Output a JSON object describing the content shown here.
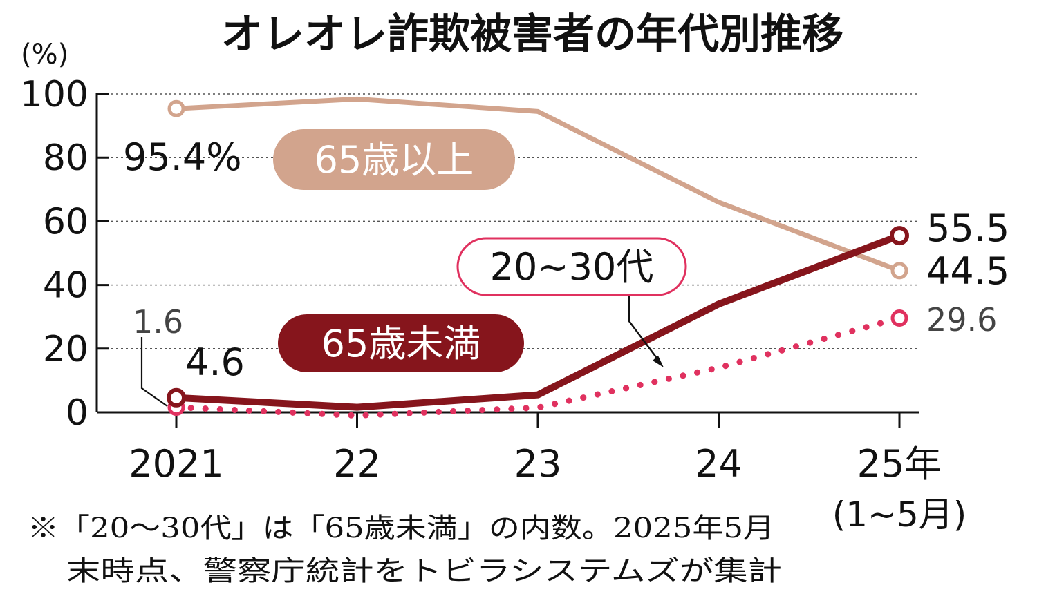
{
  "chart_data": {
    "type": "line",
    "title": "オレオレ詐欺被害者の年代別推移",
    "ylabel": "(%)",
    "ylim": [
      0,
      100
    ],
    "yticks": [
      "0",
      "20",
      "40",
      "60",
      "80",
      "100"
    ],
    "categories": [
      "2021",
      "22",
      "23",
      "24",
      "25年"
    ],
    "category_sub": [
      "",
      "",
      "",
      "",
      "(1~5月)"
    ],
    "grid": true,
    "series": [
      {
        "name": "65歳以上",
        "color": "#d2a48d",
        "values": [
          95.4,
          98.4,
          94.5,
          66.0,
          44.5
        ],
        "labels": [
          {
            "index": 0,
            "text": "95.4%"
          },
          {
            "index": 4,
            "text": "44.5"
          }
        ]
      },
      {
        "name": "65歳未満",
        "color": "#86151c",
        "values": [
          4.6,
          1.6,
          5.5,
          34.0,
          55.5
        ],
        "labels": [
          {
            "index": 0,
            "text": "4.6"
          },
          {
            "index": 4,
            "text": "55.5"
          }
        ]
      },
      {
        "name": "20~30代",
        "color": "#e0315f",
        "values": [
          1.6,
          -1.0,
          1.5,
          14.0,
          29.6
        ],
        "labels": [
          {
            "index": 0,
            "text": "1.6"
          },
          {
            "index": 4,
            "text": "29.6"
          }
        ]
      }
    ],
    "note_lines": [
      "※「20～30代」は「65歳未満」の内数。2025年5月",
      "末時点、警察庁統計をトビラシステムズが集計"
    ]
  }
}
